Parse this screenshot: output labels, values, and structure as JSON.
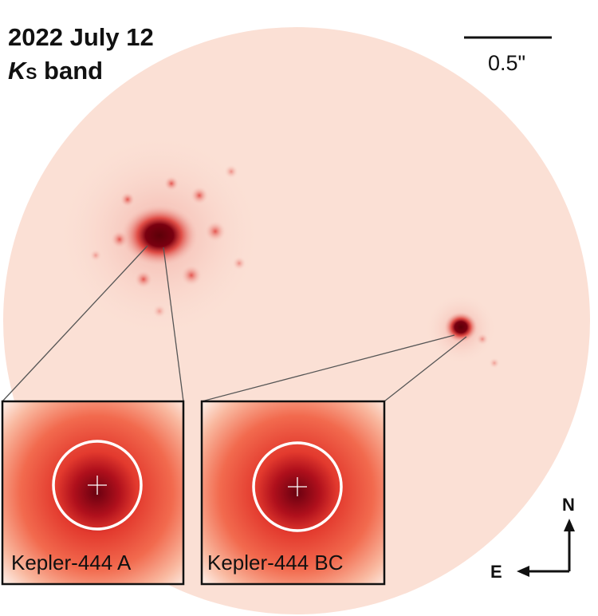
{
  "title": "2022 July 12",
  "band": {
    "symbol": "K",
    "subscript": "S",
    "word": "band"
  },
  "scale_bar": {
    "label": "0.5\""
  },
  "insets": [
    {
      "label": "Kepler-444 A"
    },
    {
      "label": "Kepler-444 BC"
    }
  ],
  "compass": {
    "north": "N",
    "east": "E"
  },
  "colors": {
    "background_disk": "#fbe0d5",
    "core": "#5c0008",
    "inset_mid": "#ee4a34",
    "circle": "#ffffff"
  }
}
